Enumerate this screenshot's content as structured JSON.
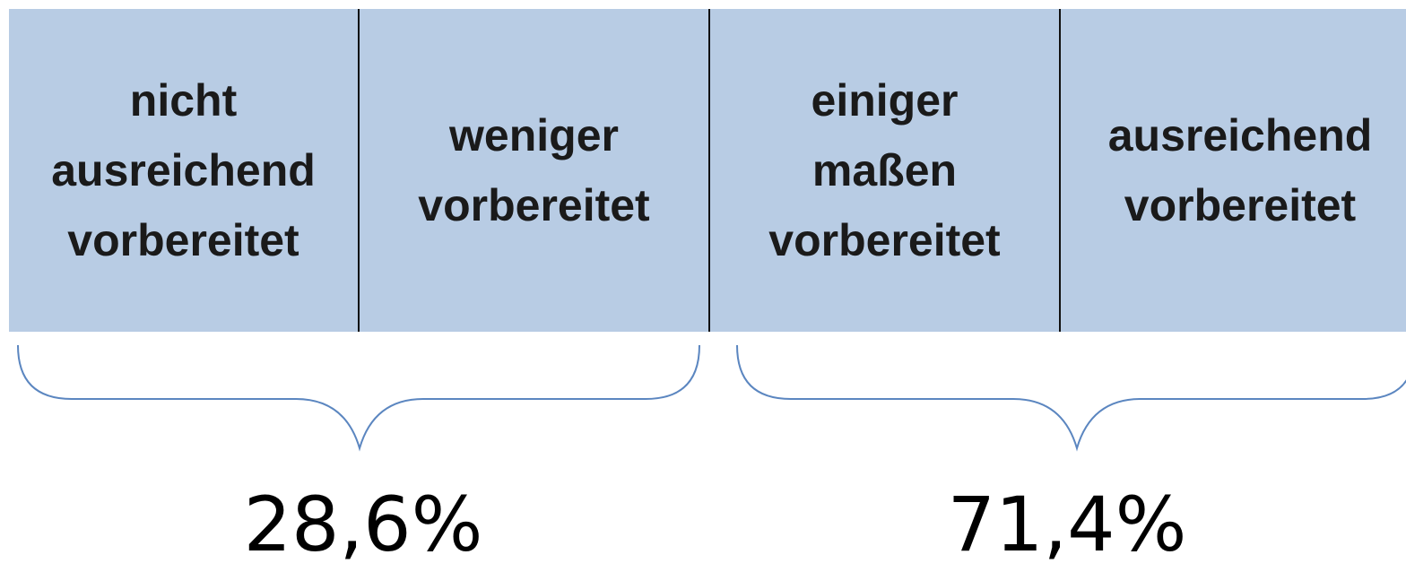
{
  "cells": [
    {
      "lines": [
        "nicht",
        "ausreichend",
        "vorbereitet"
      ]
    },
    {
      "lines": [
        "weniger",
        "vorbereitet"
      ]
    },
    {
      "lines": [
        "einiger",
        "maßen",
        "vorbereitet"
      ]
    },
    {
      "lines": [
        "ausreichend",
        "vorbereitet"
      ]
    }
  ],
  "groups": [
    {
      "label": "28,6%"
    },
    {
      "label": "71,4%"
    }
  ]
}
